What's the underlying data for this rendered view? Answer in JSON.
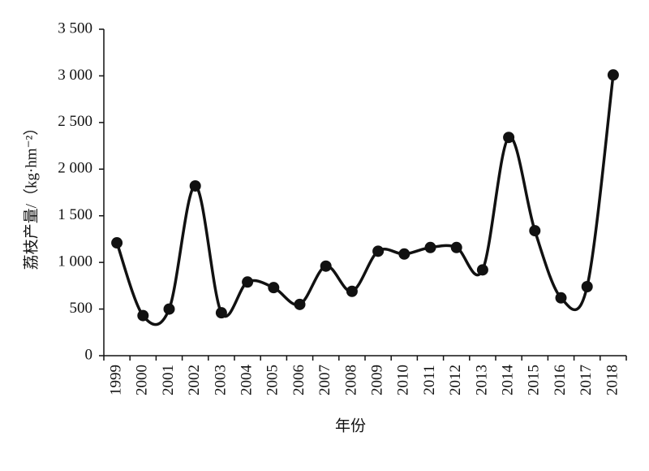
{
  "chart_data": {
    "type": "line",
    "y_label": "荔枝产量/（kg·hm⁻²）",
    "x_label": "年份",
    "categories": [
      "1999",
      "2000",
      "2001",
      "2002",
      "2003",
      "2004",
      "2005",
      "2006",
      "2007",
      "2008",
      "2009",
      "2010",
      "2011",
      "2012",
      "2013",
      "2014",
      "2015",
      "2016",
      "2017",
      "2018"
    ],
    "values": [
      1210,
      430,
      500,
      1820,
      460,
      790,
      730,
      550,
      960,
      690,
      1120,
      1090,
      1160,
      1160,
      920,
      2340,
      1340,
      620,
      740,
      3010
    ],
    "color": "#111111",
    "ylim": [
      0,
      3500
    ],
    "yticks": [
      0,
      500,
      {
        "value": 1000,
        "label": "1 000"
      },
      {
        "value": 1500,
        "label": "1 500"
      },
      {
        "value": 2000,
        "label": "2 000"
      },
      {
        "value": 2500,
        "label": "2 500"
      },
      {
        "value": 3000,
        "label": "3 000"
      },
      {
        "value": 3500,
        "label": "3 500"
      }
    ],
    "smooth": true
  }
}
